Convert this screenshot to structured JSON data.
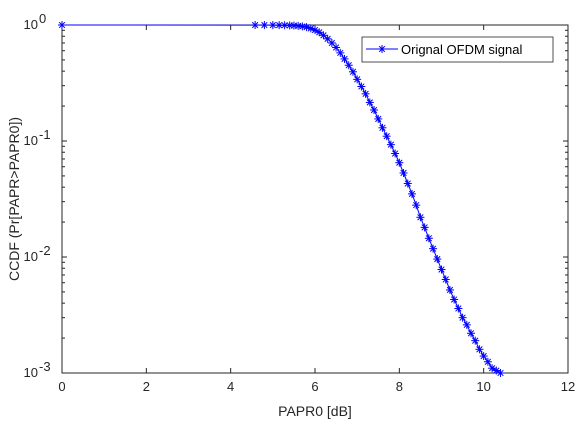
{
  "chart_data": {
    "type": "line",
    "title": "",
    "xlabel": "PAPR0 [dB]",
    "ylabel": "CCDF (Pr[PAPR>PAPR0])",
    "xlim": [
      0,
      12
    ],
    "ylim": [
      0.001,
      1
    ],
    "yscale": "log",
    "grid": false,
    "legend_position": "top-right",
    "x_ticks": [
      "0",
      "2",
      "4",
      "6",
      "8",
      "10",
      "12"
    ],
    "y_ticks": [
      {
        "base": "10",
        "exp": "0"
      },
      {
        "base": "10",
        "exp": "-1"
      },
      {
        "base": "10",
        "exp": "-2"
      },
      {
        "base": "10",
        "exp": "-3"
      }
    ],
    "series": [
      {
        "name": "Orignal OFDM signal",
        "color": "#0000ff",
        "marker": "asterisk",
        "x": [
          0.0,
          4.58,
          4.8,
          5.0,
          5.15,
          5.28,
          5.4,
          5.5,
          5.6,
          5.7,
          5.8,
          5.9,
          6.0,
          6.1,
          6.2,
          6.3,
          6.4,
          6.5,
          6.6,
          6.7,
          6.8,
          6.9,
          7.0,
          7.1,
          7.2,
          7.3,
          7.4,
          7.5,
          7.6,
          7.7,
          7.8,
          7.9,
          8.0,
          8.1,
          8.2,
          8.3,
          8.4,
          8.5,
          8.6,
          8.7,
          8.8,
          8.9,
          9.0,
          9.1,
          9.2,
          9.3,
          9.4,
          9.5,
          9.6,
          9.7,
          9.8,
          9.9,
          10.0,
          10.1,
          10.2,
          10.3,
          10.4
        ],
        "y": [
          1.0,
          0.999,
          0.999,
          0.998,
          0.997,
          0.995,
          0.992,
          0.988,
          0.982,
          0.972,
          0.958,
          0.935,
          0.905,
          0.865,
          0.815,
          0.76,
          0.7,
          0.64,
          0.575,
          0.51,
          0.45,
          0.395,
          0.34,
          0.295,
          0.255,
          0.215,
          0.185,
          0.155,
          0.13,
          0.11,
          0.093,
          0.078,
          0.065,
          0.053,
          0.043,
          0.035,
          0.028,
          0.022,
          0.018,
          0.0145,
          0.0118,
          0.0096,
          0.0078,
          0.0064,
          0.0052,
          0.0043,
          0.0036,
          0.003,
          0.0026,
          0.0022,
          0.0019,
          0.0016,
          0.0014,
          0.00125,
          0.0011,
          0.00105,
          0.001
        ]
      }
    ]
  }
}
